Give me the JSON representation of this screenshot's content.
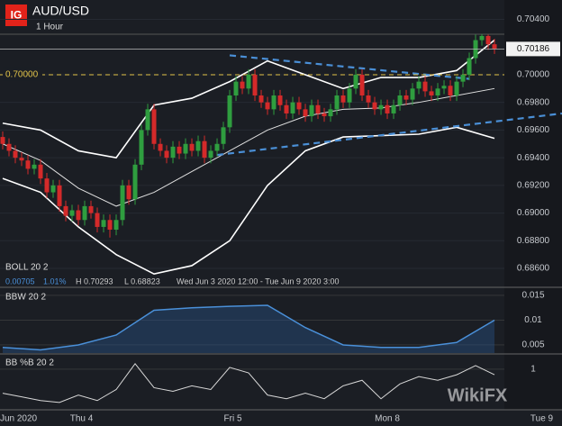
{
  "chart_data": [
    {
      "type": "candlestick",
      "title": "AUD/USD",
      "subtitle": "1 Hour",
      "legend": "BOLL 20 2",
      "info": [
        "0.00705",
        "1.01%",
        "H 0.70293",
        "L 0.68823",
        "Wed Jun 3 2020 12:00 - Tue Jun 9 2020 3:00"
      ],
      "up_color": "#2f9e3f",
      "down_color": "#d42a2a",
      "open": [
        0.6955,
        0.695,
        0.6945,
        0.694,
        0.6938,
        0.6932,
        0.6935,
        0.6925,
        0.6915,
        0.692,
        0.6905,
        0.6898,
        0.6902,
        0.6895,
        0.6905,
        0.69,
        0.689,
        0.6895,
        0.6888,
        0.6895,
        0.692,
        0.691,
        0.6935,
        0.696,
        0.6975,
        0.695,
        0.6945,
        0.694,
        0.6948,
        0.6943,
        0.695,
        0.6945,
        0.6952,
        0.694,
        0.6945,
        0.695,
        0.6962,
        0.6985,
        0.6995,
        0.699,
        0.7,
        0.6985,
        0.698,
        0.6975,
        0.6985,
        0.6978,
        0.6972,
        0.698,
        0.6975,
        0.697,
        0.6978,
        0.6972,
        0.697,
        0.6975,
        0.6985,
        0.698,
        0.699,
        0.7,
        0.6985,
        0.698,
        0.6975,
        0.6978,
        0.6972,
        0.6978,
        0.6985,
        0.6982,
        0.699,
        0.6995,
        0.6988,
        0.6985,
        0.699,
        0.6992,
        0.6985,
        0.6995,
        0.7,
        0.7012,
        0.7025,
        0.7028,
        0.7022
      ],
      "high": [
        0.6959,
        0.6954,
        0.6949,
        0.6944,
        0.6942,
        0.6939,
        0.6939,
        0.6929,
        0.6924,
        0.6924,
        0.6909,
        0.6906,
        0.6906,
        0.6909,
        0.6909,
        0.6904,
        0.6899,
        0.6899,
        0.6899,
        0.6924,
        0.6924,
        0.6939,
        0.6964,
        0.6979,
        0.6979,
        0.6954,
        0.6949,
        0.6952,
        0.6952,
        0.6954,
        0.6954,
        0.6956,
        0.6956,
        0.6949,
        0.6954,
        0.6966,
        0.6989,
        0.6999,
        0.6999,
        0.7004,
        0.7004,
        0.6989,
        0.6984,
        0.6989,
        0.6989,
        0.6982,
        0.6984,
        0.6984,
        0.6979,
        0.6982,
        0.6982,
        0.6976,
        0.6979,
        0.6989,
        0.6989,
        0.6994,
        0.7004,
        0.7004,
        0.6989,
        0.6984,
        0.6982,
        0.6982,
        0.6982,
        0.6989,
        0.6989,
        0.6994,
        0.6999,
        0.6999,
        0.6992,
        0.6994,
        0.6996,
        0.6996,
        0.6999,
        0.7004,
        0.7016,
        0.7029,
        0.70293,
        0.7029,
        0.7026
      ],
      "low": [
        0.6946,
        0.6941,
        0.6936,
        0.6934,
        0.6928,
        0.6928,
        0.6921,
        0.6911,
        0.6911,
        0.6901,
        0.6894,
        0.6894,
        0.6891,
        0.6891,
        0.6896,
        0.6886,
        0.6886,
        0.68823,
        0.6884,
        0.6891,
        0.6906,
        0.6906,
        0.6931,
        0.6956,
        0.6946,
        0.6941,
        0.6936,
        0.6936,
        0.6939,
        0.6939,
        0.6941,
        0.6941,
        0.6936,
        0.6936,
        0.6941,
        0.6946,
        0.6958,
        0.6981,
        0.6986,
        0.6986,
        0.6981,
        0.6976,
        0.6971,
        0.6971,
        0.6974,
        0.6968,
        0.6968,
        0.6971,
        0.6966,
        0.6966,
        0.6968,
        0.6966,
        0.6966,
        0.6971,
        0.6976,
        0.6976,
        0.6986,
        0.6981,
        0.6976,
        0.6971,
        0.6971,
        0.6968,
        0.6968,
        0.6974,
        0.6978,
        0.6978,
        0.6986,
        0.6984,
        0.6981,
        0.6981,
        0.6986,
        0.6981,
        0.6981,
        0.6991,
        0.6996,
        0.7008,
        0.7021,
        0.7018,
        0.7015
      ],
      "close": [
        0.695,
        0.6945,
        0.694,
        0.6938,
        0.6932,
        0.6935,
        0.6925,
        0.6915,
        0.692,
        0.6905,
        0.6898,
        0.6902,
        0.6895,
        0.6905,
        0.69,
        0.689,
        0.6895,
        0.6888,
        0.6895,
        0.692,
        0.691,
        0.6935,
        0.696,
        0.6975,
        0.695,
        0.6945,
        0.694,
        0.6948,
        0.6943,
        0.695,
        0.6945,
        0.6952,
        0.694,
        0.6945,
        0.695,
        0.6962,
        0.6985,
        0.6995,
        0.699,
        0.7,
        0.6985,
        0.698,
        0.6975,
        0.6985,
        0.6978,
        0.6972,
        0.698,
        0.6975,
        0.697,
        0.6978,
        0.6972,
        0.697,
        0.6975,
        0.6985,
        0.698,
        0.699,
        0.7,
        0.6985,
        0.698,
        0.6975,
        0.6978,
        0.6972,
        0.6978,
        0.6985,
        0.6982,
        0.699,
        0.6995,
        0.6988,
        0.6985,
        0.699,
        0.6992,
        0.6985,
        0.6995,
        0.7,
        0.7012,
        0.7025,
        0.7028,
        0.7022,
        0.70186
      ],
      "bands": {
        "x": [
          0,
          6,
          12,
          18,
          24,
          30,
          36,
          42,
          48,
          54,
          60,
          66,
          72,
          78
        ],
        "series": [
          {
            "color": "#ffffff",
            "values": [
              0.6965,
              0.696,
              0.6945,
              0.694,
              0.6978,
              0.6983,
              0.6995,
              0.701,
              0.7,
              0.699,
              0.6998,
              0.6998,
              0.7003,
              0.7025
            ]
          },
          {
            "color": "#e0e0e0",
            "values": [
              0.695,
              0.6938,
              0.6918,
              0.6905,
              0.6915,
              0.693,
              0.6945,
              0.696,
              0.697,
              0.6975,
              0.6976,
              0.698,
              0.6985,
              0.699
            ]
          },
          {
            "color": "#ffffff",
            "values": [
              0.6925,
              0.6915,
              0.689,
              0.687,
              0.6856,
              0.6862,
              0.688,
              0.692,
              0.6945,
              0.6955,
              0.6956,
              0.6957,
              0.6962,
              0.6954
            ]
          }
        ]
      },
      "trendlines": {
        "color": "#4a8fd6",
        "lines": [
          {
            "x": [
              36,
              74
            ],
            "y": [
              0.7014,
              0.6997
            ]
          },
          {
            "x": [
              34,
              88.7
            ],
            "y": [
              0.6942,
              0.6972
            ]
          }
        ]
      },
      "level": {
        "value": 0.7,
        "label": "0.70000",
        "color": "#e3c44a"
      },
      "last_price": {
        "value": 0.70186,
        "label": "0.70186"
      },
      "xlim": [
        -0.43,
        88.71
      ],
      "xticks": [
        {
          "value": 2.5,
          "label": "Jun 2020"
        },
        {
          "value": 12.5,
          "label": "Thu 4"
        },
        {
          "value": 36.5,
          "label": "Fri 5"
        },
        {
          "value": 61,
          "label": "Mon 8"
        },
        {
          "value": 85.5,
          "label": "Tue 9"
        }
      ],
      "ylim": [
        0.6847,
        0.7054
      ],
      "yticks": [
        {
          "value": 0.704,
          "label": "0.70400"
        },
        {
          "value": 0.7,
          "label": "0.70000"
        },
        {
          "value": 0.698,
          "label": "0.69800"
        },
        {
          "value": 0.696,
          "label": "0.69600"
        },
        {
          "value": 0.694,
          "label": "0.69400"
        },
        {
          "value": 0.692,
          "label": "0.69200"
        },
        {
          "value": 0.69,
          "label": "0.69000"
        },
        {
          "value": 0.688,
          "label": "0.68800"
        },
        {
          "value": 0.686,
          "label": "0.68600"
        }
      ],
      "watermark": "WikiFX"
    },
    {
      "type": "area",
      "legend": "BBW 20 2",
      "color": "#4a90d9",
      "x": [
        0,
        6,
        12,
        18,
        24,
        30,
        36,
        42,
        48,
        54,
        60,
        66,
        72,
        78
      ],
      "values": [
        0.0045,
        0.004,
        0.005,
        0.007,
        0.012,
        0.0125,
        0.0128,
        0.013,
        0.0085,
        0.005,
        0.0045,
        0.0045,
        0.0055,
        0.01
      ],
      "ylim": [
        0.00336,
        0.01645
      ],
      "yticks": [
        0.015,
        0.01,
        0.005
      ]
    },
    {
      "type": "line",
      "legend": "BB %B 20 2",
      "color": "#d8d8d8",
      "x": [
        0,
        3,
        6,
        9,
        12,
        15,
        18,
        21,
        24,
        27,
        30,
        33,
        36,
        39,
        42,
        45,
        48,
        51,
        54,
        57,
        60,
        63,
        66,
        69,
        72,
        75,
        78
      ],
      "values": [
        0.35,
        0.25,
        0.15,
        0.1,
        0.3,
        0.15,
        0.45,
        1.15,
        0.5,
        0.4,
        0.55,
        0.45,
        1.05,
        0.9,
        0.3,
        0.2,
        0.35,
        0.2,
        0.55,
        0.7,
        0.2,
        0.6,
        0.8,
        0.7,
        0.85,
        1.1,
        0.85
      ],
      "ylim": [
        -0.1,
        1.39
      ],
      "yticks": [
        1
      ]
    }
  ]
}
